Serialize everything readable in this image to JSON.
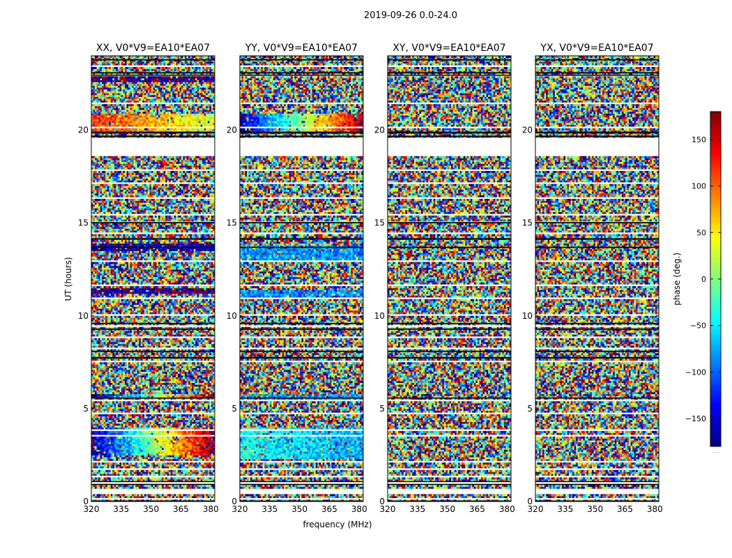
{
  "chart_data": {
    "type": "heatmap",
    "suptitle": "2019-09-26 0.0-24.0",
    "xlabel": "frequency (MHz)",
    "ylabel": "UT (hours)",
    "xlim": [
      320,
      382
    ],
    "ylim": [
      0,
      24
    ],
    "xticks": [
      320,
      335,
      350,
      365,
      380
    ],
    "yticks": [
      0,
      5,
      10,
      15,
      20
    ],
    "colormap": "jet",
    "colorbar": {
      "label": "phase (deg.)",
      "range": [
        -180,
        180
      ],
      "ticks": [
        -150,
        -100,
        -50,
        0,
        50,
        100,
        150
      ],
      "tick_labels": [
        "−150",
        "−100",
        "−50",
        "0",
        "50",
        "100",
        "150"
      ],
      "offset_text": "....."
    },
    "panels": [
      {
        "title": "XX, V0*V9=EA10*EA07",
        "coherent_bands": [
          {
            "ut_range": [
              19.9,
              20.9
            ],
            "phase_low_freq": 120,
            "phase_high_freq": 30
          },
          {
            "ut_range": [
              13.5,
              13.9
            ],
            "phase_low_freq": -160,
            "phase_high_freq": -150
          },
          {
            "ut_range": [
              11.2,
              11.5
            ],
            "phase_low_freq": -170,
            "phase_high_freq": -170
          },
          {
            "ut_range": [
              5.6,
              5.8
            ],
            "phase_low_freq": -170,
            "phase_high_freq": 170
          },
          {
            "ut_range": [
              2.5,
              4.0
            ],
            "phase_low_freq": -165,
            "phase_high_freq": 175
          },
          {
            "ut_range": [
              22.6,
              22.9
            ],
            "phase_low_freq": -170,
            "phase_high_freq": -170
          }
        ]
      },
      {
        "title": "YY, V0*V9=EA10*EA07",
        "coherent_bands": [
          {
            "ut_range": [
              19.9,
              20.9
            ],
            "phase_low_freq": -160,
            "phase_high_freq": 165
          },
          {
            "ut_range": [
              13.0,
              13.8
            ],
            "phase_low_freq": -80,
            "phase_high_freq": -85
          },
          {
            "ut_range": [
              11.0,
              11.4
            ],
            "phase_low_freq": -85,
            "phase_high_freq": -90
          },
          {
            "ut_range": [
              5.5,
              5.8
            ],
            "phase_low_freq": -80,
            "phase_high_freq": -85
          },
          {
            "ut_range": [
              2.3,
              4.0
            ],
            "phase_low_freq": -40,
            "phase_high_freq": -75
          }
        ]
      },
      {
        "title": "XY, V0*V9=EA10*EA07",
        "coherent_bands": []
      },
      {
        "title": "YX, V0*V9=EA10*EA07",
        "coherent_bands": []
      }
    ],
    "flagged_ut_ranges": [
      [
        0.1,
        0.18
      ],
      [
        0.38,
        0.7
      ],
      [
        0.95,
        1.05
      ],
      [
        1.3,
        1.38
      ],
      [
        1.7,
        1.8
      ],
      [
        2.15,
        2.22
      ],
      [
        3.55,
        3.62
      ],
      [
        3.85,
        3.92
      ],
      [
        4.7,
        4.76
      ],
      [
        5.45,
        5.52
      ],
      [
        6.15,
        6.22
      ],
      [
        7.55,
        7.62
      ],
      [
        8.2,
        8.26
      ],
      [
        8.85,
        8.92
      ],
      [
        9.45,
        9.52
      ],
      [
        10.05,
        10.12
      ],
      [
        10.9,
        10.98
      ],
      [
        11.6,
        11.66
      ],
      [
        12.35,
        12.42
      ],
      [
        12.95,
        13.02
      ],
      [
        14.4,
        14.46
      ],
      [
        15.05,
        15.12
      ],
      [
        15.45,
        15.52
      ],
      [
        16.3,
        16.36
      ],
      [
        17.15,
        17.22
      ],
      [
        17.85,
        17.92
      ],
      [
        18.58,
        18.62
      ],
      [
        18.62,
        19.58
      ],
      [
        20.15,
        20.22
      ],
      [
        21.45,
        21.52
      ],
      [
        22.05,
        22.12
      ],
      [
        22.95,
        23.02
      ],
      [
        23.4,
        23.46
      ]
    ],
    "empty_ut_ranges": [
      [
        18.62,
        19.58
      ]
    ],
    "black_ut_ranges": [
      [
        0.0,
        0.05
      ],
      [
        0.9,
        0.95
      ],
      [
        1.05,
        1.1
      ],
      [
        5.55,
        5.6
      ],
      [
        7.7,
        7.78
      ],
      [
        8.05,
        8.12
      ],
      [
        9.25,
        9.32
      ],
      [
        9.55,
        9.62
      ],
      [
        13.65,
        13.72
      ],
      [
        14.1,
        14.18
      ],
      [
        14.98,
        15.05
      ],
      [
        19.62,
        19.7
      ],
      [
        19.82,
        19.92
      ],
      [
        22.95,
        22.98
      ],
      [
        23.05,
        23.12
      ],
      [
        23.75,
        23.82
      ]
    ]
  }
}
